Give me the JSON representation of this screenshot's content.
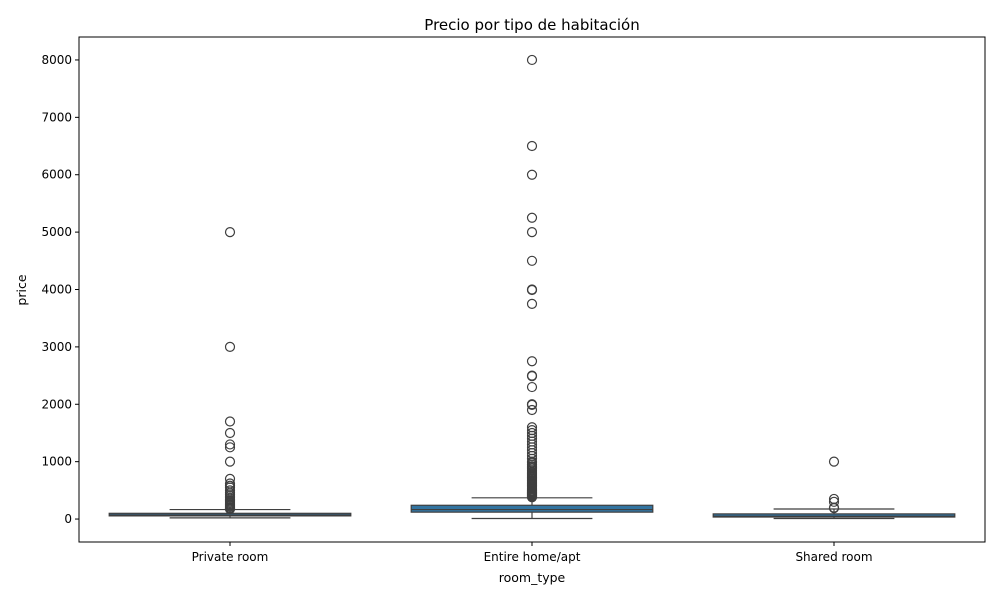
{
  "chart_data": {
    "type": "box",
    "title": "Precio por tipo de habitación",
    "xlabel": "room_type",
    "ylabel": "price",
    "ylim": [
      -400,
      8400
    ],
    "yticks": [
      0,
      1000,
      2000,
      3000,
      4000,
      5000,
      6000,
      7000,
      8000
    ],
    "grid": false,
    "box_color": "#3274a1",
    "line_color": "#3f3f3f",
    "categories": [
      "Private room",
      "Entire home/apt",
      "Shared room"
    ],
    "boxes": [
      {
        "category": "Private room",
        "whislo": 20,
        "q1": 55,
        "median": 70,
        "q3": 100,
        "whishi": 165,
        "fliers": [
          5000,
          3000,
          1700,
          1500,
          1300,
          1250,
          1000,
          700,
          620,
          580,
          550,
          500,
          460,
          430,
          400,
          370,
          340,
          320,
          300,
          280,
          260,
          240,
          220,
          200,
          185,
          175
        ]
      },
      {
        "category": "Entire home/apt",
        "whislo": 10,
        "q1": 120,
        "median": 165,
        "q3": 240,
        "whishi": 370,
        "fliers": [
          8000,
          6500,
          6000,
          5250,
          5000,
          4500,
          4000,
          3990,
          3750,
          2750,
          2500,
          2490,
          2300,
          2000,
          1990,
          1900,
          1600,
          1550,
          1500,
          1450,
          1400,
          1350,
          1300,
          1250,
          1200,
          1150,
          1100,
          1050,
          1000,
          980,
          950,
          920,
          900,
          880,
          850,
          820,
          800,
          780,
          760,
          740,
          720,
          700,
          680,
          660,
          640,
          620,
          600,
          580,
          560,
          540,
          520,
          500,
          490,
          480,
          470,
          460,
          450,
          440,
          430,
          420,
          410,
          400,
          390,
          380
        ]
      },
      {
        "category": "Shared room",
        "whislo": 10,
        "q1": 35,
        "median": 50,
        "q3": 90,
        "whishi": 175,
        "fliers": [
          1000,
          350,
          300,
          200,
          190
        ]
      }
    ]
  }
}
